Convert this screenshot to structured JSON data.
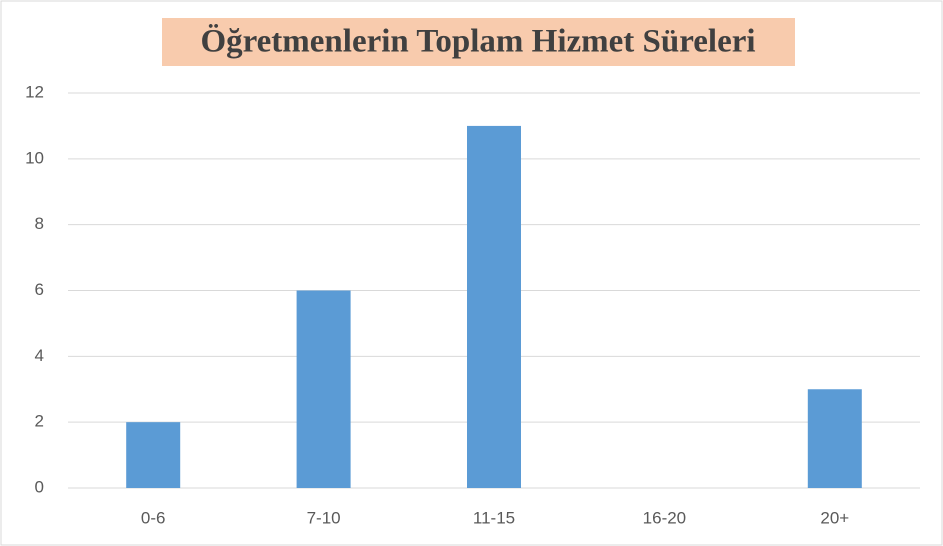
{
  "chart_data": {
    "type": "bar",
    "title": "Öğretmenlerin Toplam Hizmet Süreleri",
    "categories": [
      "0-6",
      "7-10",
      "11-15",
      "16-20",
      "20+"
    ],
    "values": [
      2,
      6,
      11,
      0,
      3
    ],
    "color": "#5b9bd5",
    "ylim": [
      0,
      12
    ],
    "yticks": [
      0,
      2,
      4,
      6,
      8,
      10,
      12
    ],
    "grid": true
  }
}
